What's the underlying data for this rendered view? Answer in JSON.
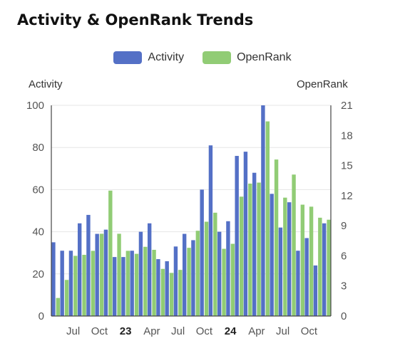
{
  "title": "Activity & OpenRank Trends",
  "legend": [
    {
      "label": "Activity",
      "color": "#5470c6"
    },
    {
      "label": "OpenRank",
      "color": "#91cc75"
    }
  ],
  "chart_data": {
    "type": "bar",
    "title": "Activity & OpenRank Trends",
    "y_left": {
      "label": "Activity",
      "ylim": [
        0,
        100
      ],
      "ticks": [
        0,
        20,
        40,
        60,
        80,
        100
      ]
    },
    "y_right": {
      "label": "OpenRank",
      "ylim": [
        0,
        21
      ],
      "ticks": [
        0,
        3,
        6,
        9,
        12,
        15,
        18,
        21
      ]
    },
    "x_tick_labels": [
      {
        "index": 2,
        "label": "Jul",
        "bold": false
      },
      {
        "index": 5,
        "label": "Oct",
        "bold": false
      },
      {
        "index": 8,
        "label": "23",
        "bold": true
      },
      {
        "index": 11,
        "label": "Apr",
        "bold": false
      },
      {
        "index": 14,
        "label": "Jul",
        "bold": false
      },
      {
        "index": 17,
        "label": "Oct",
        "bold": false
      },
      {
        "index": 20,
        "label": "24",
        "bold": true
      },
      {
        "index": 23,
        "label": "Apr",
        "bold": false
      },
      {
        "index": 26,
        "label": "Jul",
        "bold": false
      },
      {
        "index": 29,
        "label": "Oct",
        "bold": false
      }
    ],
    "grid": true,
    "legend_position": "top-center",
    "series": [
      {
        "name": "Activity",
        "axis": "left",
        "color": "#5470c6",
        "values": [
          35,
          31,
          31,
          44,
          48,
          39,
          41,
          28,
          28,
          31,
          40,
          44,
          27,
          26,
          33,
          39,
          36,
          60,
          81,
          40,
          45,
          76,
          78,
          68,
          100,
          58,
          42,
          54,
          31,
          37,
          24,
          44
        ]
      },
      {
        "name": "OpenRank",
        "axis": "right",
        "color": "#91cc75",
        "values": [
          1.8,
          3.6,
          6.0,
          6.1,
          6.5,
          8.2,
          12.5,
          8.2,
          6.5,
          6.2,
          6.9,
          6.6,
          4.7,
          4.3,
          4.6,
          6.8,
          8.5,
          9.4,
          10.3,
          6.7,
          7.2,
          11.9,
          13.2,
          13.3,
          19.4,
          15.6,
          11.8,
          14.1,
          11.1,
          10.9,
          9.8,
          9.6
        ]
      }
    ]
  }
}
